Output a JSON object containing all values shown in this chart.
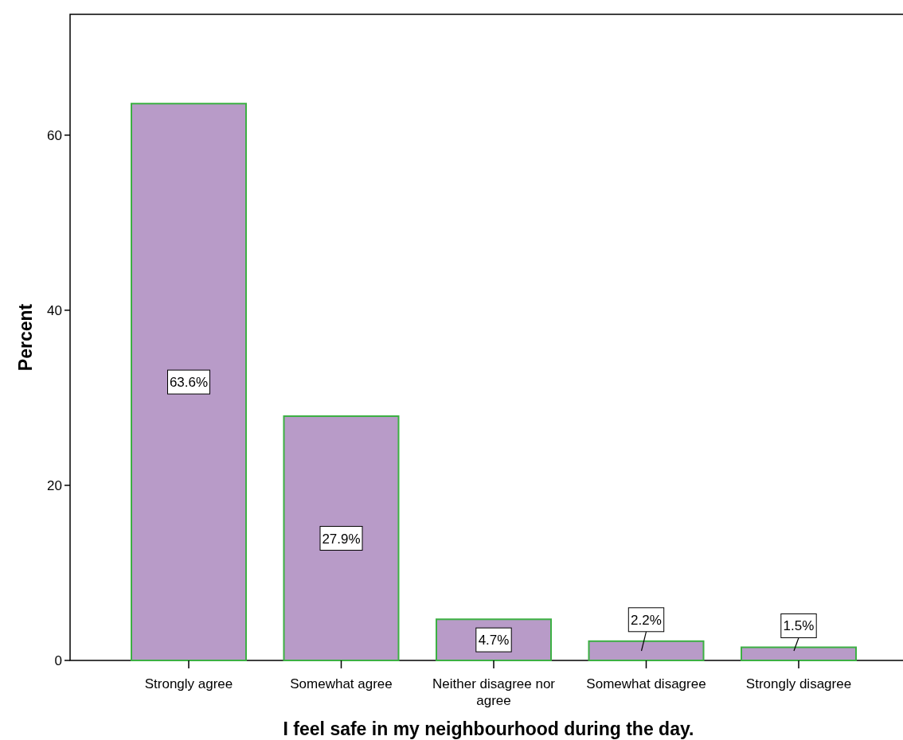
{
  "chart_data": {
    "type": "bar",
    "xlabel": "I feel safe in my neighbourhood during the day.",
    "ylabel": "Percent",
    "categories": [
      "Strongly  agree",
      "Somewhat agree",
      "Neither disagree nor agree",
      "Somewhat disagree",
      "Strongly  disagree"
    ],
    "values": [
      63.6,
      27.9,
      4.7,
      2.2,
      1.5
    ],
    "value_labels": [
      "63.6%",
      "27.9%",
      "4.7%",
      "2.2%",
      "1.5%"
    ],
    "color": "#b89bc8",
    "ylim": [
      0,
      73.8
    ],
    "yticks": [
      0,
      20,
      40,
      60
    ],
    "grid": false
  }
}
